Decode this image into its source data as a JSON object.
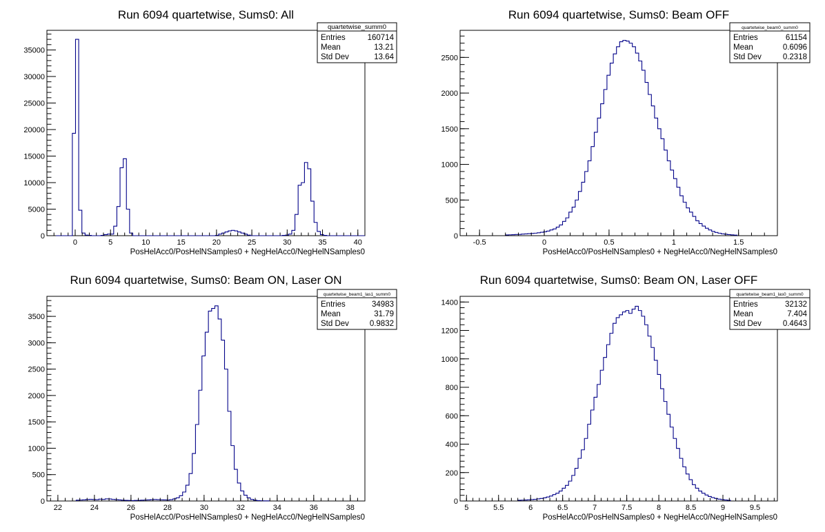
{
  "chart_data": [
    {
      "type": "histogram",
      "title": "Run 6094 quartetwise, Sums0: All",
      "xlabel": "PosHelAcc0/PosHelNSamples0 + NegHelAcc0/NegHelNSamples0",
      "ylabel": "",
      "xlim": [
        -4,
        41
      ],
      "ylim": [
        0,
        38700
      ],
      "xticks": [
        0,
        5,
        10,
        15,
        20,
        25,
        30,
        35,
        40
      ],
      "xtick_labels": [
        "0",
        "5",
        "10",
        "15",
        "20",
        "25",
        "30",
        "35",
        "40"
      ],
      "yticks": [
        0,
        5000,
        10000,
        15000,
        20000,
        25000,
        30000,
        35000
      ],
      "ytick_labels": [
        "0",
        "5000",
        "10000",
        "15000",
        "20000",
        "25000",
        "30000",
        "35000"
      ],
      "grid": false,
      "stats": {
        "name": "quartetwise_summ0",
        "rows": [
          {
            "label": "Entries",
            "value": "160714"
          },
          {
            "label": "Mean",
            "value": "13.21"
          },
          {
            "label": "Std Dev",
            "value": "13.64"
          }
        ]
      },
      "bins": {
        "edges_start": -4,
        "width": 0.45,
        "counts": [
          0,
          0,
          0,
          0,
          0,
          0,
          0,
          0,
          19300,
          37000,
          4800,
          500,
          100,
          50,
          0,
          0,
          0,
          50,
          200,
          300,
          300,
          1800,
          5500,
          12800,
          14500,
          5000,
          500,
          0,
          0,
          0,
          0,
          0,
          0,
          0,
          0,
          0,
          0,
          0,
          0,
          0,
          0,
          0,
          0,
          0,
          0,
          0,
          0,
          0,
          0,
          0,
          0,
          0,
          0,
          50,
          300,
          500,
          700,
          900,
          1000,
          900,
          700,
          500,
          300,
          100,
          0,
          0,
          0,
          0,
          0,
          0,
          0,
          0,
          0,
          0,
          50,
          100,
          300,
          1000,
          4000,
          9500,
          10000,
          13800,
          12600,
          6500,
          2500,
          800,
          200,
          50,
          0,
          0,
          0,
          0,
          0,
          0,
          0,
          0,
          0,
          0,
          0,
          0
        ]
      }
    },
    {
      "type": "histogram",
      "title": "Run 6094 quartetwise, Sums0: Beam OFF",
      "xlabel": "PosHelAcc0/PosHelNSamples0 + NegHelAcc0/NegHelNSamples0",
      "ylabel": "",
      "xlim": [
        -0.65,
        1.8
      ],
      "ylim": [
        0,
        2880
      ],
      "xticks": [
        -0.5,
        0,
        0.5,
        1,
        1.5
      ],
      "xtick_labels": [
        "-0.5",
        "0",
        "0.5",
        "1",
        "1.5"
      ],
      "yticks": [
        0,
        500,
        1000,
        1500,
        2000,
        2500
      ],
      "ytick_labels": [
        "0",
        "500",
        "1000",
        "1500",
        "2000",
        "2500"
      ],
      "grid": false,
      "stats": {
        "name": "quartetwise_beam0_summ0",
        "rows": [
          {
            "label": "Entries",
            "value": "61154"
          },
          {
            "label": "Mean",
            "value": "0.6096"
          },
          {
            "label": "Std Dev",
            "value": "0.2318"
          }
        ]
      },
      "bins": {
        "edges_start": -0.3,
        "width": 0.0245,
        "counts": [
          10,
          12,
          14,
          16,
          18,
          22,
          25,
          28,
          32,
          35,
          40,
          48,
          55,
          65,
          80,
          95,
          120,
          150,
          200,
          250,
          330,
          400,
          500,
          620,
          750,
          900,
          1050,
          1250,
          1450,
          1650,
          1850,
          2050,
          2250,
          2420,
          2550,
          2650,
          2720,
          2740,
          2730,
          2700,
          2650,
          2560,
          2450,
          2320,
          2150,
          1980,
          1820,
          1650,
          1500,
          1360,
          1200,
          1050,
          920,
          800,
          680,
          560,
          470,
          390,
          330,
          270,
          210,
          170,
          135,
          105,
          80,
          60,
          45,
          35,
          26,
          20,
          15,
          11,
          8
        ]
      }
    },
    {
      "type": "histogram",
      "title": "Run 6094 quartetwise, Sums0: Beam ON, Laser ON",
      "xlabel": "PosHelAcc0/PosHelNSamples0 + NegHelAcc0/NegHelNSamples0",
      "ylabel": "",
      "xlim": [
        21.4,
        38.8
      ],
      "ylim": [
        0,
        3880
      ],
      "xticks": [
        22,
        24,
        26,
        28,
        30,
        32,
        34,
        36,
        38
      ],
      "xtick_labels": [
        "22",
        "24",
        "26",
        "28",
        "30",
        "32",
        "34",
        "36",
        "38"
      ],
      "yticks": [
        0,
        500,
        1000,
        1500,
        2000,
        2500,
        3000,
        3500
      ],
      "ytick_labels": [
        "0",
        "500",
        "1000",
        "1500",
        "2000",
        "2500",
        "3000",
        "3500"
      ],
      "grid": false,
      "stats": {
        "name": "quartetwise_beam1_las1_summ0",
        "rows": [
          {
            "label": "Entries",
            "value": "34983"
          },
          {
            "label": "Mean",
            "value": "31.79"
          },
          {
            "label": "Std Dev",
            "value": "0.9832"
          }
        ]
      },
      "bins": {
        "edges_start": 23.0,
        "width": 0.1765,
        "counts": [
          15,
          18,
          22,
          28,
          32,
          28,
          25,
          35,
          30,
          40,
          38,
          30,
          25,
          20,
          15,
          12,
          10,
          8,
          10,
          12,
          15,
          18,
          20,
          25,
          28,
          25,
          22,
          20,
          18,
          25,
          40,
          60,
          100,
          170,
          300,
          520,
          900,
          1450,
          2100,
          2750,
          3200,
          3600,
          3650,
          3700,
          3450,
          3050,
          2500,
          1700,
          1050,
          600,
          340,
          190,
          110,
          60,
          30,
          15,
          8,
          5,
          3,
          2
        ]
      }
    },
    {
      "type": "histogram",
      "title": "Run 6094 quartetwise, Sums0: Beam ON, Laser OFF",
      "xlabel": "PosHelAcc0/PosHelNSamples0 + NegHelAcc0/NegHelNSamples0",
      "ylabel": "",
      "xlim": [
        4.9,
        9.85
      ],
      "ylim": [
        0,
        1440
      ],
      "xticks": [
        5,
        5.5,
        6,
        6.5,
        7,
        7.5,
        8,
        8.5,
        9,
        9.5
      ],
      "xtick_labels": [
        "5",
        "5.5",
        "6",
        "6.5",
        "7",
        "7.5",
        "8",
        "8.5",
        "9",
        "9.5"
      ],
      "yticks": [
        0,
        200,
        400,
        600,
        800,
        1000,
        1200,
        1400
      ],
      "ytick_labels": [
        "0",
        "200",
        "400",
        "600",
        "800",
        "1000",
        "1200",
        "1400"
      ],
      "grid": false,
      "stats": {
        "name": "quartetwise_beam1_las0_summ0",
        "rows": [
          {
            "label": "Entries",
            "value": "32132"
          },
          {
            "label": "Mean",
            "value": "7.404"
          },
          {
            "label": "Std Dev",
            "value": "0.4643"
          }
        ]
      },
      "bins": {
        "edges_start": 5.8,
        "width": 0.0495,
        "counts": [
          5,
          6,
          7,
          8,
          10,
          12,
          15,
          18,
          22,
          28,
          35,
          45,
          55,
          70,
          90,
          110,
          140,
          180,
          230,
          300,
          360,
          440,
          540,
          640,
          730,
          820,
          920,
          1010,
          1100,
          1180,
          1250,
          1290,
          1310,
          1330,
          1340,
          1320,
          1350,
          1370,
          1340,
          1300,
          1240,
          1160,
          1080,
          990,
          890,
          790,
          700,
          610,
          520,
          440,
          370,
          300,
          240,
          190,
          150,
          115,
          90,
          70,
          55,
          42,
          32,
          24,
          18,
          13,
          10,
          7,
          5
        ]
      }
    }
  ]
}
